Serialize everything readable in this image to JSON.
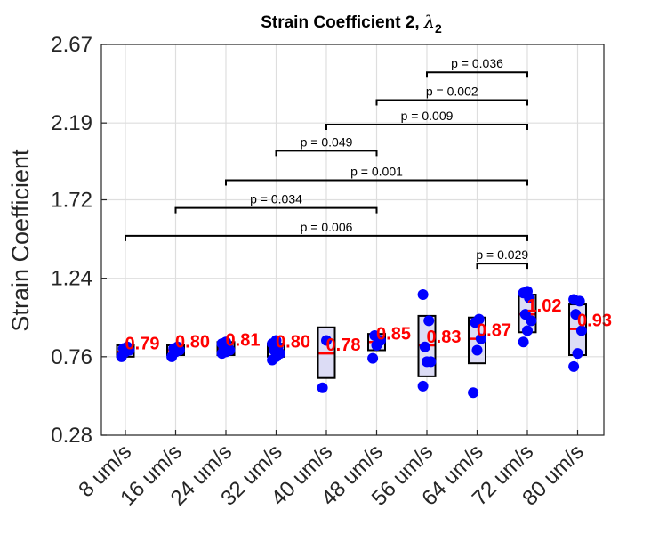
{
  "chart_data": {
    "type": "box",
    "title": "Strain Coefficient 2, ",
    "title_symbol": "λ",
    "title_subscript": "2",
    "ylabel": "Strain Coefficient",
    "xlabel": "",
    "ylim": [
      0.28,
      2.67
    ],
    "yticks": [
      "0.28",
      "0.76",
      "1.24",
      "1.72",
      "2.19",
      "2.67"
    ],
    "categories": [
      "8 um/s",
      "16 um/s",
      "24 um/s",
      "32 um/s",
      "40 um/s",
      "48 um/s",
      "56 um/s",
      "64 um/s",
      "72 um/s",
      "80 um/s"
    ],
    "grid": true,
    "boxes": [
      {
        "q1": 0.76,
        "median": 0.79,
        "q3": 0.83
      },
      {
        "q1": 0.77,
        "median": 0.8,
        "q3": 0.83
      },
      {
        "q1": 0.77,
        "median": 0.81,
        "q3": 0.85
      },
      {
        "q1": 0.76,
        "median": 0.8,
        "q3": 0.84
      },
      {
        "q1": 0.63,
        "median": 0.78,
        "q3": 0.94
      },
      {
        "q1": 0.8,
        "median": 0.85,
        "q3": 0.9
      },
      {
        "q1": 0.64,
        "median": 0.83,
        "q3": 1.01
      },
      {
        "q1": 0.72,
        "median": 0.87,
        "q3": 1.0
      },
      {
        "q1": 0.91,
        "median": 1.02,
        "q3": 1.14
      },
      {
        "q1": 0.77,
        "median": 0.93,
        "q3": 1.08
      }
    ],
    "points": [
      [
        0.76,
        0.79,
        0.8,
        0.81,
        0.82
      ],
      [
        0.76,
        0.79,
        0.8,
        0.81,
        0.82
      ],
      [
        0.78,
        0.79,
        0.8,
        0.81,
        0.82,
        0.84,
        0.85
      ],
      [
        0.74,
        0.76,
        0.78,
        0.8,
        0.82,
        0.84,
        0.86
      ],
      [
        0.57,
        0.86
      ],
      [
        0.75,
        0.83,
        0.86,
        0.89
      ],
      [
        0.58,
        0.73,
        0.73,
        0.82,
        0.98,
        1.14
      ],
      [
        0.54,
        0.8,
        0.87,
        0.97,
        0.99
      ],
      [
        0.85,
        0.92,
        0.98,
        1.02,
        1.12,
        1.15,
        1.16
      ],
      [
        0.7,
        0.78,
        0.92,
        1.02,
        1.1,
        1.11
      ]
    ],
    "median_labels": [
      "0.79",
      "0.80",
      "0.81",
      "0.80",
      "0.78",
      "0.85",
      "0.83",
      "0.87",
      "1.02",
      "0.93"
    ],
    "significance_brackets": [
      {
        "from": 0,
        "to": 8,
        "y": 1.5,
        "label": "p = 0.006"
      },
      {
        "from": 1,
        "to": 5,
        "y": 1.67,
        "label": "p = 0.034"
      },
      {
        "from": 2,
        "to": 8,
        "y": 1.84,
        "label": "p = 0.001"
      },
      {
        "from": 3,
        "to": 5,
        "y": 2.02,
        "label": "p = 0.049"
      },
      {
        "from": 4,
        "to": 8,
        "y": 2.18,
        "label": "p = 0.009"
      },
      {
        "from": 5,
        "to": 8,
        "y": 2.33,
        "label": "p = 0.002"
      },
      {
        "from": 6,
        "to": 8,
        "y": 2.5,
        "label": "p = 0.036"
      },
      {
        "from": 7,
        "to": 8,
        "y": 1.33,
        "label": "p = 0.029"
      }
    ],
    "colors": {
      "box_fill": "#dcdcf5",
      "box_edge": "#000000",
      "median": "#ff0000",
      "points": "#0000ff",
      "median_label": "#ff0000",
      "grid": "#dedede"
    }
  }
}
